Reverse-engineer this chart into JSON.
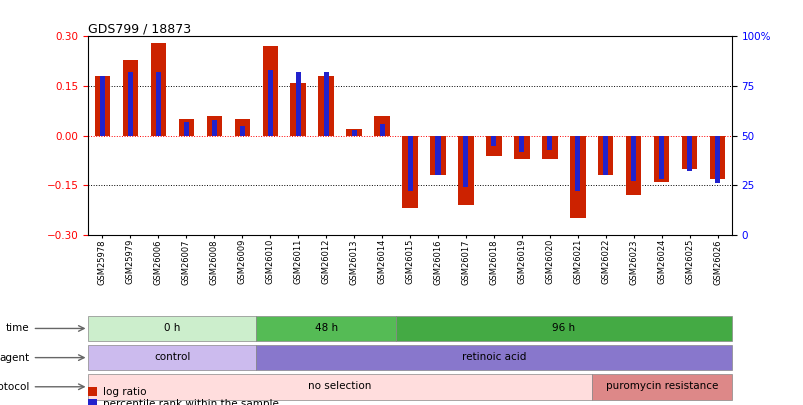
{
  "title": "GDS799 / 18873",
  "samples": [
    "GSM25978",
    "GSM25979",
    "GSM26006",
    "GSM26007",
    "GSM26008",
    "GSM26009",
    "GSM26010",
    "GSM26011",
    "GSM26012",
    "GSM26013",
    "GSM26014",
    "GSM26015",
    "GSM26016",
    "GSM26017",
    "GSM26018",
    "GSM26019",
    "GSM26020",
    "GSM26021",
    "GSM26022",
    "GSM26023",
    "GSM26024",
    "GSM26025",
    "GSM26026"
  ],
  "log_ratio": [
    0.18,
    0.23,
    0.28,
    0.05,
    0.06,
    0.05,
    0.27,
    0.16,
    0.18,
    0.02,
    0.06,
    -0.22,
    -0.12,
    -0.21,
    -0.06,
    -0.07,
    -0.07,
    -0.25,
    -0.12,
    -0.18,
    -0.14,
    -0.1,
    -0.13
  ],
  "percentile_rank": [
    80,
    82,
    82,
    57,
    58,
    55,
    83,
    82,
    82,
    53,
    56,
    22,
    30,
    24,
    45,
    42,
    43,
    22,
    30,
    27,
    28,
    32,
    26
  ],
  "ylim": [
    -0.3,
    0.3
  ],
  "bar_color": "#cc2200",
  "blue_color": "#2222cc",
  "time_groups": [
    {
      "label": "0 h",
      "start": 0,
      "end": 6,
      "color": "#cceecc"
    },
    {
      "label": "48 h",
      "start": 6,
      "end": 11,
      "color": "#55bb55"
    },
    {
      "label": "96 h",
      "start": 11,
      "end": 23,
      "color": "#44aa44"
    }
  ],
  "agent_groups": [
    {
      "label": "control",
      "start": 0,
      "end": 6,
      "color": "#ccbbee"
    },
    {
      "label": "retinoic acid",
      "start": 6,
      "end": 23,
      "color": "#8877cc"
    }
  ],
  "growth_groups": [
    {
      "label": "no selection",
      "start": 0,
      "end": 18,
      "color": "#ffdddd"
    },
    {
      "label": "puromycin resistance",
      "start": 18,
      "end": 23,
      "color": "#dd8888"
    }
  ],
  "legend_items": [
    {
      "label": "log ratio",
      "color": "#cc2200"
    },
    {
      "label": "percentile rank within the sample",
      "color": "#2222cc"
    }
  ]
}
